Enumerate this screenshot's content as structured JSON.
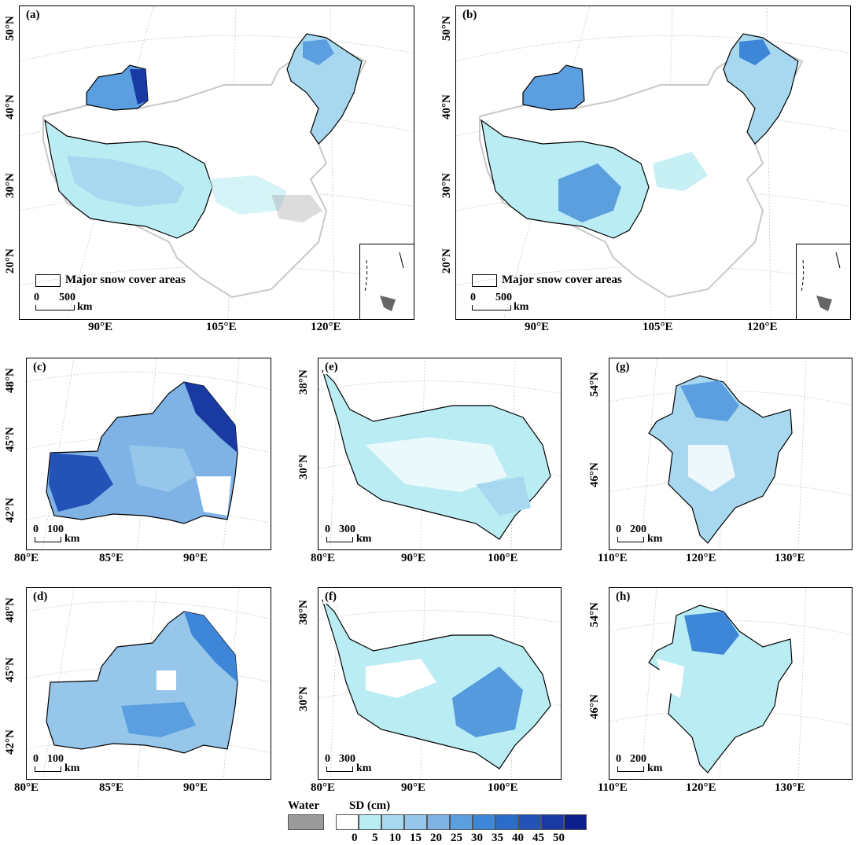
{
  "panels": {
    "a": {
      "label": "(a)"
    },
    "b": {
      "label": "(b)"
    },
    "c": {
      "label": "(c)"
    },
    "d": {
      "label": "(d)"
    },
    "e": {
      "label": "(e)"
    },
    "f": {
      "label": "(f)"
    },
    "g": {
      "label": "(g)"
    },
    "h": {
      "label": "(h)"
    }
  },
  "top_x_ticks": [
    "90°E",
    "105°E",
    "120°E"
  ],
  "top_y_ticks": [
    "50°N",
    "40°N",
    "30°N",
    "20°N"
  ],
  "legend_major": "Major snow cover areas",
  "scale_top": {
    "start": "0",
    "value": "500",
    "unit": "km"
  },
  "scale_xinjiang": {
    "start": "0",
    "value": "100",
    "unit": "km"
  },
  "scale_tibet": {
    "start": "0",
    "value": "300",
    "unit": "km"
  },
  "scale_northeast": {
    "start": "0",
    "value": "200",
    "unit": "km"
  },
  "xinjiang_x_ticks": [
    "80°E",
    "85°E",
    "90°E"
  ],
  "xinjiang_y_ticks": [
    "48°N",
    "45°N",
    "42°N"
  ],
  "tibet_x_ticks": [
    "80°E",
    "90°E",
    "100°E"
  ],
  "tibet_y_ticks": [
    "38°N",
    "30°N"
  ],
  "northeast_x_ticks": [
    "110°E",
    "120°E",
    "130°E"
  ],
  "northeast_y_ticks": [
    "54°N",
    "46°N"
  ],
  "colorbar": {
    "water_label": "Water",
    "sd_label": "SD (cm)",
    "water_color": "#9a9a9a",
    "ticks": [
      "0",
      "5",
      "10",
      "15",
      "20",
      "25",
      "30",
      "35",
      "40",
      "45",
      "50"
    ],
    "colors": [
      "#ffffff",
      "#b9ecf3",
      "#a8d8ef",
      "#96c6ea",
      "#7fb3e6",
      "#5b9fe0",
      "#3d86d8",
      "#2c6cc9",
      "#2453b8",
      "#1a3aa3",
      "#0d1f8a"
    ]
  }
}
